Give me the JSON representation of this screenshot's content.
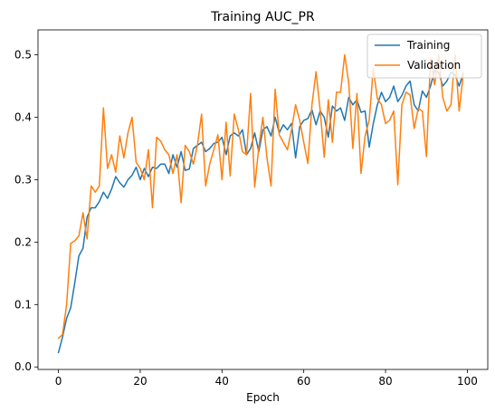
{
  "chart_data": {
    "type": "line",
    "title": "Training AUC_PR",
    "xlabel": "Epoch",
    "ylabel": "",
    "xlim": [
      -5,
      105
    ],
    "ylim": [
      -0.004,
      0.54
    ],
    "xticks": [
      0,
      20,
      40,
      60,
      80,
      100
    ],
    "yticks": [
      0.0,
      0.1,
      0.2,
      0.3,
      0.4,
      0.5
    ],
    "xtick_labels": [
      "0",
      "20",
      "40",
      "60",
      "80",
      "100"
    ],
    "ytick_labels": [
      "0.0",
      "0.1",
      "0.2",
      "0.3",
      "0.4",
      "0.5"
    ],
    "grid": false,
    "legend_position": "upper right",
    "x": [
      0,
      1,
      2,
      3,
      4,
      5,
      6,
      7,
      8,
      9,
      10,
      11,
      12,
      13,
      14,
      15,
      16,
      17,
      18,
      19,
      20,
      21,
      22,
      23,
      24,
      25,
      26,
      27,
      28,
      29,
      30,
      31,
      32,
      33,
      34,
      35,
      36,
      37,
      38,
      39,
      40,
      41,
      42,
      43,
      44,
      45,
      46,
      47,
      48,
      49,
      50,
      51,
      52,
      53,
      54,
      55,
      56,
      57,
      58,
      59,
      60,
      61,
      62,
      63,
      64,
      65,
      66,
      67,
      68,
      69,
      70,
      71,
      72,
      73,
      74,
      75,
      76,
      77,
      78,
      79,
      80,
      81,
      82,
      83,
      84,
      85,
      86,
      87,
      88,
      89,
      90,
      91,
      92,
      93,
      94,
      95,
      96,
      97,
      98,
      99
    ],
    "series": [
      {
        "name": "Training",
        "color": "#1f77b4",
        "values": [
          0.023,
          0.048,
          0.078,
          0.095,
          0.135,
          0.178,
          0.19,
          0.24,
          0.255,
          0.255,
          0.265,
          0.28,
          0.27,
          0.285,
          0.305,
          0.295,
          0.288,
          0.3,
          0.307,
          0.32,
          0.3,
          0.318,
          0.305,
          0.32,
          0.318,
          0.325,
          0.325,
          0.31,
          0.34,
          0.32,
          0.345,
          0.315,
          0.317,
          0.35,
          0.355,
          0.36,
          0.345,
          0.35,
          0.358,
          0.36,
          0.368,
          0.34,
          0.37,
          0.375,
          0.37,
          0.38,
          0.34,
          0.35,
          0.375,
          0.345,
          0.38,
          0.385,
          0.37,
          0.4,
          0.375,
          0.388,
          0.38,
          0.39,
          0.335,
          0.385,
          0.395,
          0.398,
          0.412,
          0.388,
          0.41,
          0.4,
          0.368,
          0.418,
          0.41,
          0.415,
          0.395,
          0.432,
          0.42,
          0.428,
          0.408,
          0.41,
          0.352,
          0.39,
          0.42,
          0.44,
          0.425,
          0.432,
          0.45,
          0.425,
          0.435,
          0.45,
          0.458,
          0.42,
          0.41,
          0.442,
          0.432,
          0.45,
          0.475,
          0.472,
          0.45,
          0.458,
          0.472,
          0.468,
          0.45,
          0.47
        ]
      },
      {
        "name": "Validation",
        "color": "#ff7f0e",
        "values": [
          0.046,
          0.052,
          0.1,
          0.198,
          0.202,
          0.21,
          0.247,
          0.205,
          0.29,
          0.28,
          0.29,
          0.415,
          0.318,
          0.34,
          0.312,
          0.37,
          0.335,
          0.375,
          0.4,
          0.328,
          0.318,
          0.3,
          0.348,
          0.255,
          0.368,
          0.362,
          0.348,
          0.34,
          0.31,
          0.34,
          0.263,
          0.355,
          0.345,
          0.325,
          0.356,
          0.405,
          0.29,
          0.325,
          0.348,
          0.372,
          0.3,
          0.392,
          0.306,
          0.405,
          0.38,
          0.345,
          0.34,
          0.438,
          0.288,
          0.352,
          0.4,
          0.335,
          0.29,
          0.445,
          0.372,
          0.36,
          0.348,
          0.38,
          0.42,
          0.395,
          0.36,
          0.326,
          0.42,
          0.473,
          0.412,
          0.336,
          0.428,
          0.36,
          0.44,
          0.44,
          0.5,
          0.455,
          0.35,
          0.438,
          0.31,
          0.37,
          0.395,
          0.478,
          0.43,
          0.42,
          0.39,
          0.395,
          0.41,
          0.292,
          0.42,
          0.44,
          0.436,
          0.382,
          0.414,
          0.41,
          0.337,
          0.495,
          0.452,
          0.5,
          0.432,
          0.41,
          0.42,
          0.5,
          0.41,
          0.468
        ]
      }
    ]
  }
}
